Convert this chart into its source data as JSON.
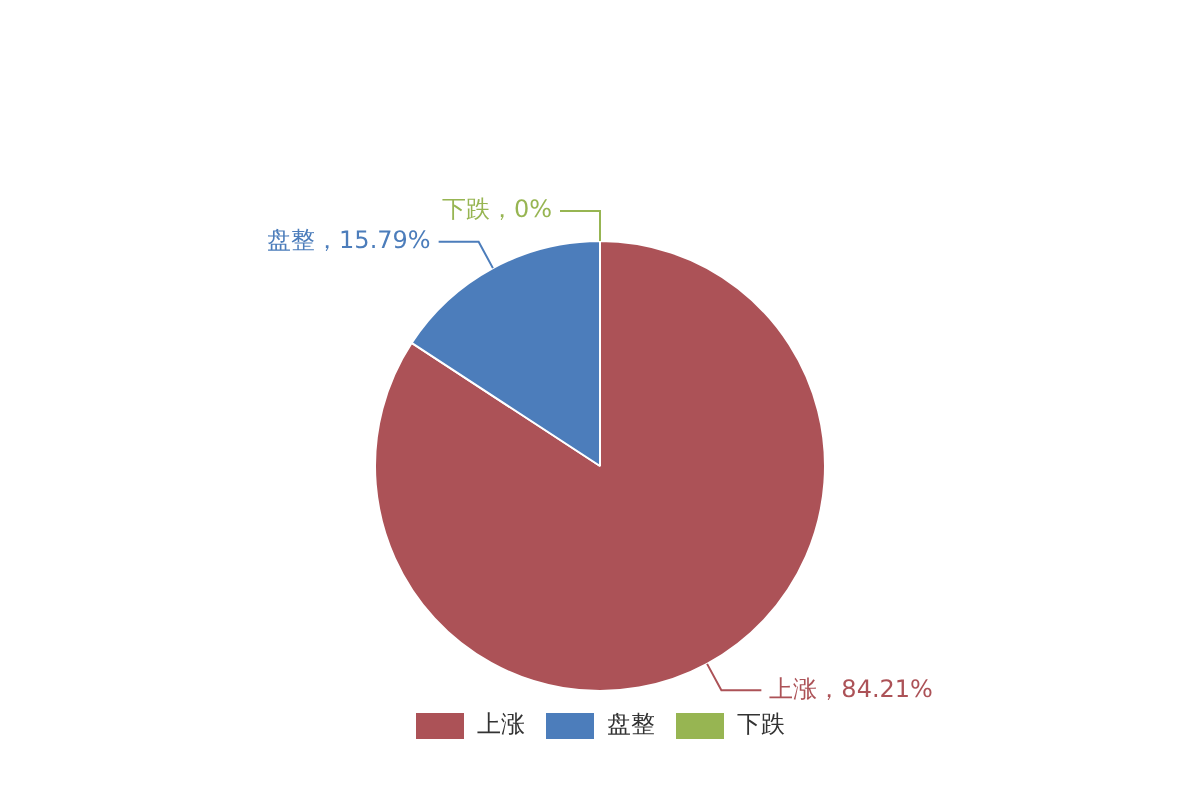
{
  "chart_data": {
    "type": "pie",
    "categories": [
      "上涨",
      "盘整",
      "下跌"
    ],
    "values": [
      84.21,
      15.79,
      0
    ],
    "colors": [
      "#ac5257",
      "#4c7dbb",
      "#97b552"
    ],
    "value_labels": [
      "上涨，84.21%",
      "盘整，15.79%",
      "下跌，0%"
    ],
    "legend": "bottom"
  }
}
